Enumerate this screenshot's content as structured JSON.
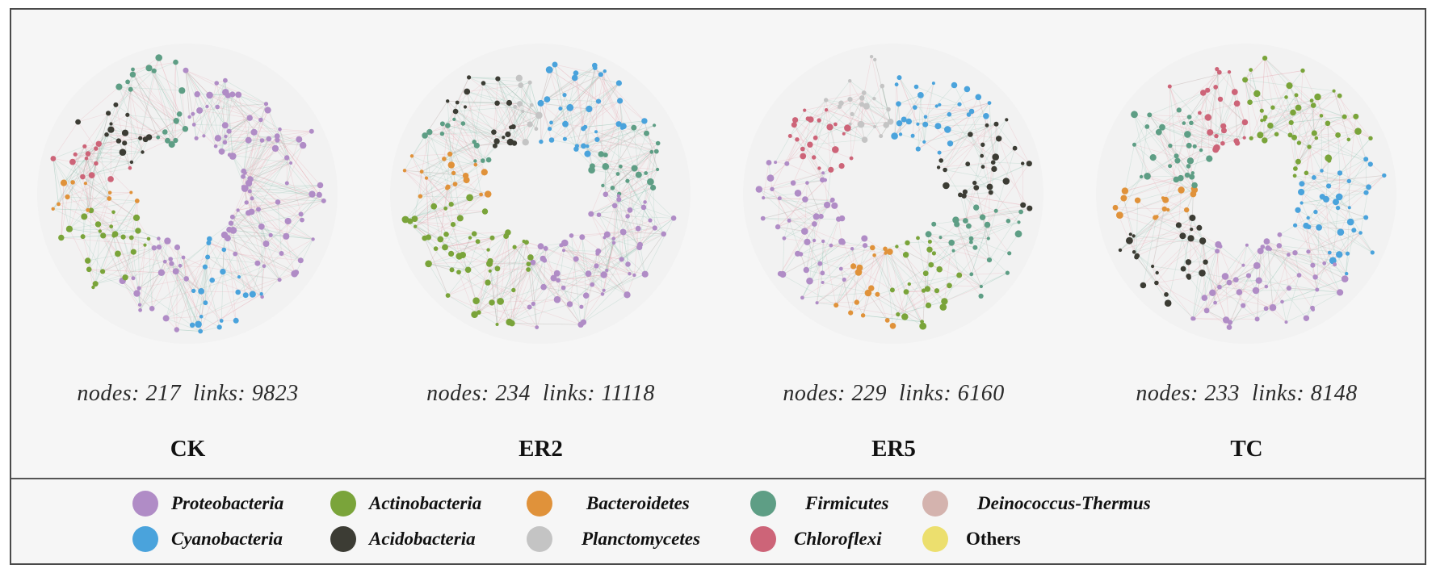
{
  "panels": [
    {
      "id": "CK",
      "title": "CK",
      "nodes": 217,
      "links": 9823,
      "segments": [
        [
          "proteobacteria",
          0.4
        ],
        [
          "cyanobacteria",
          0.1
        ],
        [
          "proteobacteria",
          0.1
        ],
        [
          "actinobacteria",
          0.12
        ],
        [
          "bacteroidetes",
          0.05
        ],
        [
          "chloroflexi",
          0.06
        ],
        [
          "acidobacteria",
          0.08
        ],
        [
          "firmicutes",
          0.09
        ]
      ]
    },
    {
      "id": "ER2",
      "title": "ER2",
      "nodes": 234,
      "links": 11118,
      "segments": [
        [
          "cyanobacteria",
          0.15
        ],
        [
          "firmicutes",
          0.1
        ],
        [
          "proteobacteria",
          0.27
        ],
        [
          "actinobacteria",
          0.22
        ],
        [
          "bacteroidetes",
          0.08
        ],
        [
          "firmicutes",
          0.05
        ],
        [
          "acidobacteria",
          0.08
        ],
        [
          "planctomycetes",
          0.05
        ]
      ]
    },
    {
      "id": "ER5",
      "title": "ER5",
      "nodes": 229,
      "links": 6160,
      "segments": [
        [
          "cyanobacteria",
          0.14
        ],
        [
          "acidobacteria",
          0.13
        ],
        [
          "firmicutes",
          0.12
        ],
        [
          "actinobacteria",
          0.11
        ],
        [
          "bacteroidetes",
          0.08
        ],
        [
          "proteobacteria",
          0.22
        ],
        [
          "chloroflexi",
          0.1
        ],
        [
          "planctomycetes",
          0.1
        ]
      ]
    },
    {
      "id": "TC",
      "title": "TC",
      "nodes": 233,
      "links": 8148,
      "segments": [
        [
          "actinobacteria",
          0.2
        ],
        [
          "cyanobacteria",
          0.16
        ],
        [
          "proteobacteria",
          0.22
        ],
        [
          "acidobacteria",
          0.12
        ],
        [
          "bacteroidetes",
          0.07
        ],
        [
          "firmicutes",
          0.13
        ],
        [
          "chloroflexi",
          0.1
        ]
      ]
    }
  ],
  "stats_template": {
    "nodes_label": "nodes:",
    "links_label": "links:"
  },
  "legend": [
    {
      "key": "proteobacteria",
      "label": "Proteobacteria",
      "color": "#b08cc6",
      "italic": true
    },
    {
      "key": "actinobacteria",
      "label": "Actinobacteria",
      "color": "#7aa43a",
      "italic": true
    },
    {
      "key": "bacteroidetes",
      "label": "Bacteroidetes",
      "color": "#e0923a",
      "italic": true
    },
    {
      "key": "firmicutes",
      "label": "Firmicutes",
      "color": "#5e9e85",
      "italic": true
    },
    {
      "key": "deinococcus",
      "label": "Deinococcus-Thermus",
      "color": "#d4b3ae",
      "italic": true
    },
    {
      "key": "cyanobacteria",
      "label": "Cyanobacteria",
      "color": "#4aa3dc",
      "italic": true
    },
    {
      "key": "acidobacteria",
      "label": "Acidobacteria",
      "color": "#3c3c34",
      "italic": true
    },
    {
      "key": "planctomycetes",
      "label": "Planctomycetes",
      "color": "#c4c4c4",
      "italic": true
    },
    {
      "key": "chloroflexi",
      "label": "Chloroflexi",
      "color": "#cd6478",
      "italic": true
    },
    {
      "key": "others",
      "label": "Others",
      "color": "#ecdf6e",
      "italic": false
    }
  ]
}
